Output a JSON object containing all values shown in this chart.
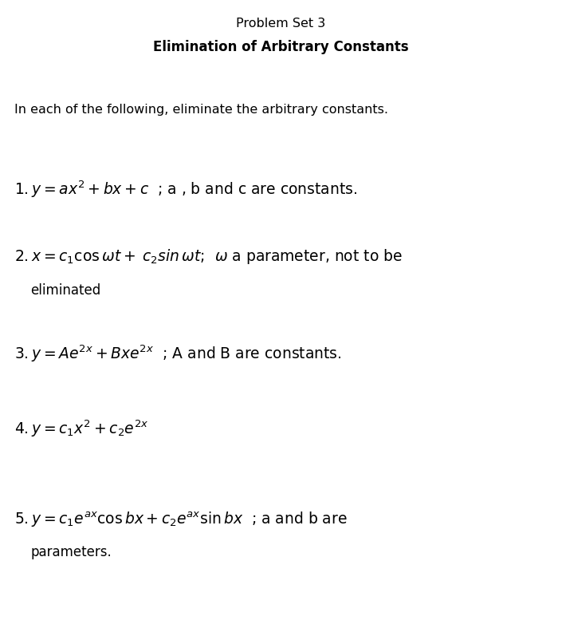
{
  "title": "Problem Set 3",
  "subtitle": "Elimination of Arbitrary Constants",
  "intro": "In each of the following, eliminate the arbitrary constants.",
  "background_color": "#ffffff",
  "text_color": "#000000",
  "fig_width": 7.05,
  "fig_height": 7.87,
  "dpi": 100
}
